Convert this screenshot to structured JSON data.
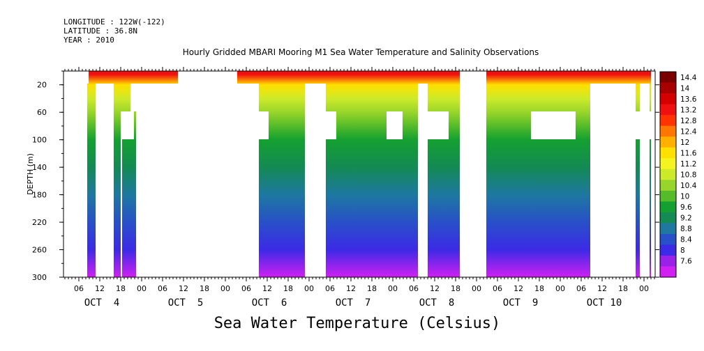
{
  "header": {
    "longitude": "LONGITUDE : 122W(-122)",
    "latitude": "LATITUDE : 36.8N",
    "year": "YEAR : 2010"
  },
  "title": "Hourly Gridded MBARI Mooring M1 Sea Water Temperature and Salinity Observations",
  "variable_title": "Sea Water Temperature (Celsius)",
  "chart_data": {
    "type": "heatmap",
    "title": "Hourly Gridded MBARI Mooring M1 Sea Water Temperature and Salinity Observations",
    "xlabel": "",
    "ylabel": "DEPTH (m)",
    "ylim": [
      0,
      300
    ],
    "y_inverted": true,
    "y_ticks": [
      20,
      60,
      100,
      140,
      180,
      220,
      260,
      300
    ],
    "x_hour_ticks": [
      "06",
      "12",
      "18",
      "00",
      "06",
      "12",
      "18",
      "00",
      "06",
      "12",
      "18",
      "00",
      "06",
      "12",
      "18",
      "00",
      "06",
      "12",
      "18",
      "00",
      "06",
      "12",
      "18",
      "00",
      "06",
      "12",
      "18",
      "00"
    ],
    "day_labels": [
      "OCT  4",
      "OCT  5",
      "OCT  6",
      "OCT  7",
      "OCT  8",
      "OCT  9",
      "OCT 10"
    ],
    "colorbar": {
      "levels": [
        "14.4",
        "14",
        "13.6",
        "13.2",
        "12.8",
        "12.4",
        "12",
        "11.6",
        "11.2",
        "10.8",
        "10.4",
        "10",
        "9.6",
        "9.2",
        "8.8",
        "8.4",
        "8",
        "7.6"
      ],
      "colors": [
        "#7a0000",
        "#a80000",
        "#d40000",
        "#f01010",
        "#ff3300",
        "#ff7700",
        "#ffb000",
        "#ffe000",
        "#f4f420",
        "#cdea2a",
        "#98d52a",
        "#55bb2a",
        "#14a030",
        "#148a54",
        "#1e78a0",
        "#2850c8",
        "#3c2ae6",
        "#9a22e8",
        "#d020f2"
      ]
    },
    "profile_values": [
      {
        "depth": 5,
        "value": 13.0
      },
      {
        "depth": 20,
        "value": 11.8
      },
      {
        "depth": 40,
        "value": 11.0
      },
      {
        "depth": 60,
        "value": 10.6
      },
      {
        "depth": 80,
        "value": 10.2
      },
      {
        "depth": 100,
        "value": 10.0
      },
      {
        "depth": 140,
        "value": 9.6
      },
      {
        "depth": 180,
        "value": 9.2
      },
      {
        "depth": 220,
        "value": 8.8
      },
      {
        "depth": 260,
        "value": 8.4
      },
      {
        "depth": 300,
        "value": 7.8
      }
    ]
  }
}
